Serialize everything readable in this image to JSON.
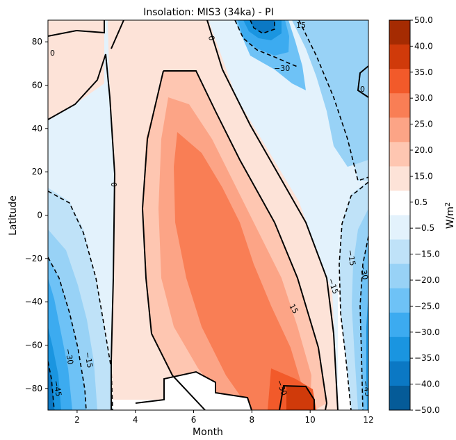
{
  "chart_data": {
    "type": "heatmap",
    "title": "Insolation: MIS3 (34ka) - PI",
    "xlabel": "Month",
    "ylabel": "Latitude",
    "xlim": [
      1,
      12
    ],
    "ylim": [
      -90,
      90
    ],
    "x_ticks": [
      "2",
      "4",
      "6",
      "8",
      "10",
      "12"
    ],
    "y_ticks": [
      "80",
      "60",
      "40",
      "20",
      "0",
      "−20",
      "−40",
      "−60",
      "−80"
    ],
    "colorbar": {
      "label_base": "W/m",
      "label_exp": "2",
      "levels": [
        "50.0",
        "40.0",
        "35.0",
        "30.0",
        "25.0",
        "20.0",
        "15.0",
        "0.5",
        "−0.5",
        "−15.0",
        "−20.0",
        "−25.0",
        "−30.0",
        "−35.0",
        "−40.0",
        "−50.0"
      ],
      "colors": [
        "#a52b02",
        "#d03a0a",
        "#f25a2a",
        "#f97e55",
        "#fca486",
        "#fec6b1",
        "#fde3d8",
        "#ffffff",
        "#e3f2fc",
        "#bfe2f8",
        "#98d2f6",
        "#6ec2f6",
        "#3cabf0",
        "#1a95e0",
        "#0b78c4",
        "#055b98"
      ]
    },
    "contour_labels": [
      "0",
      "0",
      "0",
      "0",
      "15",
      "15",
      "−15",
      "−15",
      "−15",
      "−30",
      "−30",
      "−30",
      "−30",
      "−45",
      "−45"
    ],
    "grid": false
  }
}
